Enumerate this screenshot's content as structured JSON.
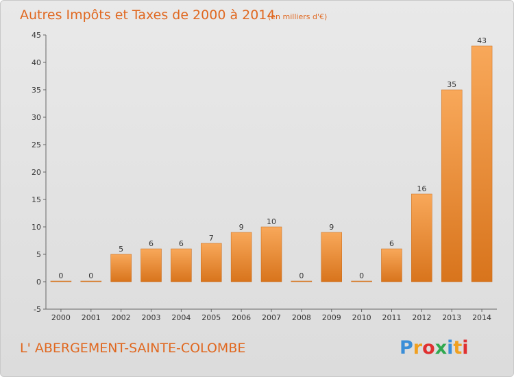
{
  "chart_data": {
    "type": "bar",
    "title": "Autres Impôts et Taxes de 2000 à 2014",
    "subtitle": "(en milliers d'€)",
    "categories": [
      "2000",
      "2001",
      "2002",
      "2003",
      "2004",
      "2005",
      "2006",
      "2007",
      "2008",
      "2009",
      "2010",
      "2011",
      "2012",
      "2013",
      "2014"
    ],
    "values": [
      0,
      0,
      5,
      6,
      6,
      7,
      9,
      10,
      0,
      9,
      0,
      6,
      16,
      35,
      43
    ],
    "ylim": [
      -5,
      45
    ],
    "yticks": [
      -5,
      0,
      5,
      10,
      15,
      20,
      25,
      30,
      35,
      40,
      45
    ],
    "grid": false,
    "colors": {
      "bar_top": "#f8a85a",
      "bar_bottom": "#d8741c",
      "text_accent": "#e06820"
    }
  },
  "footer": {
    "place_name": "L' ABERGEMENT-SAINTE-COLOMBE",
    "logo_text": "Proxiti",
    "logo_colors": [
      "#3a8ed8",
      "#f0a020",
      "#e03030",
      "#30a850",
      "#3a8ed8",
      "#f0a020",
      "#e03030"
    ]
  }
}
